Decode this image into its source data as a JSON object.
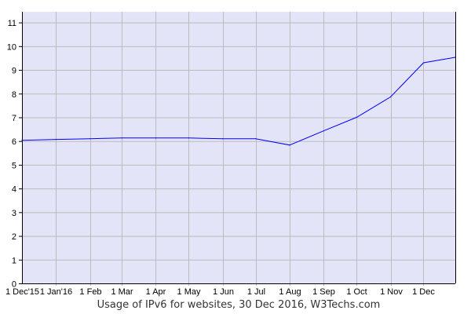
{
  "chart_data": {
    "type": "line",
    "title": "Usage of IPv6 for websites, 30 Dec 2016, W3Techs.com",
    "xlabel": "",
    "ylabel": "",
    "x_range": [
      "2015-12-01",
      "2016-12-30"
    ],
    "ylim": [
      0,
      11.45
    ],
    "grid": true,
    "plot_background": "#e4e4f8",
    "line_color": "#0000ff",
    "grid_color": "#bbbbbb",
    "y_ticks": [
      0,
      1,
      2,
      3,
      4,
      5,
      6,
      7,
      8,
      9,
      10,
      11
    ],
    "x_ticks": [
      {
        "date": "2015-12-01",
        "label": "1 Dec'15"
      },
      {
        "date": "2016-01-01",
        "label": "1 Jan'16"
      },
      {
        "date": "2016-02-01",
        "label": "1 Feb"
      },
      {
        "date": "2016-03-01",
        "label": "1 Mar"
      },
      {
        "date": "2016-04-01",
        "label": "1 Apr"
      },
      {
        "date": "2016-05-01",
        "label": "1 May"
      },
      {
        "date": "2016-06-01",
        "label": "1 Jun"
      },
      {
        "date": "2016-07-01",
        "label": "1 Jul"
      },
      {
        "date": "2016-08-01",
        "label": "1 Aug"
      },
      {
        "date": "2016-09-01",
        "label": "1 Sep"
      },
      {
        "date": "2016-10-01",
        "label": "1 Oct"
      },
      {
        "date": "2016-11-01",
        "label": "1 Nov"
      },
      {
        "date": "2016-12-01",
        "label": "1 Dec"
      }
    ],
    "series": [
      {
        "x": [
          "2015-12-01",
          "2016-01-01",
          "2016-02-01",
          "2016-03-01",
          "2016-04-01",
          "2016-05-01",
          "2016-06-01",
          "2016-07-01",
          "2016-08-01",
          "2016-09-01",
          "2016-10-01",
          "2016-11-01",
          "2016-12-01",
          "2016-12-30"
        ],
        "y": [
          6.03,
          6.07,
          6.1,
          6.13,
          6.13,
          6.13,
          6.1,
          6.1,
          5.83,
          6.43,
          7.0,
          7.86,
          9.3,
          9.53
        ]
      }
    ]
  }
}
